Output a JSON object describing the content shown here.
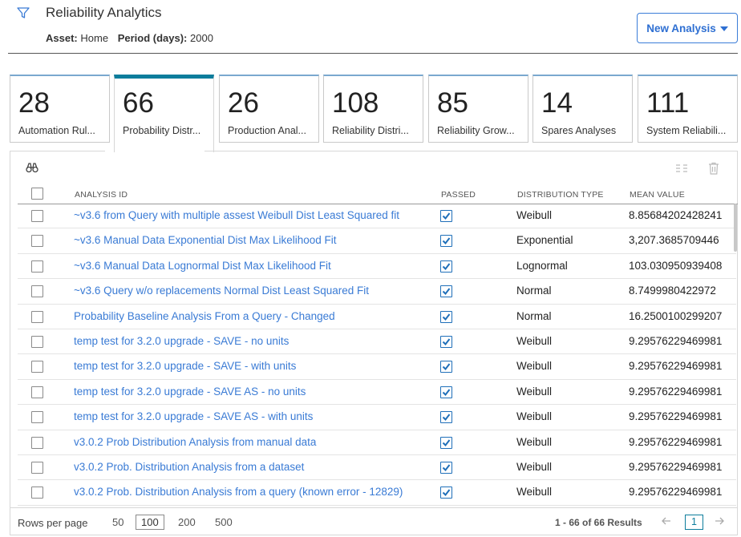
{
  "header": {
    "title": "Reliability Analytics",
    "asset_label": "Asset:",
    "asset_value": "Home",
    "period_label": "Period (days):",
    "period_value": "2000",
    "new_analysis_label": "New Analysis"
  },
  "tiles": [
    {
      "count": "28",
      "label": "Automation Rul...",
      "active": false
    },
    {
      "count": "66",
      "label": "Probability Distr...",
      "active": true
    },
    {
      "count": "26",
      "label": "Production Anal...",
      "active": false
    },
    {
      "count": "108",
      "label": "Reliability Distri...",
      "active": false
    },
    {
      "count": "85",
      "label": "Reliability Grow...",
      "active": false
    },
    {
      "count": "14",
      "label": "Spares Analyses",
      "active": false
    },
    {
      "count": "111",
      "label": "System Reliabili...",
      "active": false
    }
  ],
  "table": {
    "columns": {
      "analysis_id": "ANALYSIS ID",
      "passed": "PASSED",
      "distribution_type": "DISTRIBUTION TYPE",
      "mean_value": "MEAN VALUE"
    },
    "rows": [
      {
        "id": "~v3.6 from Query with multiple assest Weibull Dist Least Squared fit",
        "passed": true,
        "dist": "Weibull",
        "mean": "8.85684202428241"
      },
      {
        "id": "~v3.6 Manual Data Exponential Dist Max Likelihood Fit",
        "passed": true,
        "dist": "Exponential",
        "mean": "3,207.3685709446"
      },
      {
        "id": "~v3.6 Manual Data Lognormal Dist Max Likelihood Fit",
        "passed": true,
        "dist": "Lognormal",
        "mean": "103.030950939408"
      },
      {
        "id": "~v3.6 Query w/o replacements Normal Dist Least Squared Fit",
        "passed": true,
        "dist": "Normal",
        "mean": "8.7499980422972"
      },
      {
        "id": "Probability Baseline Analysis From a Query - Changed",
        "passed": true,
        "dist": "Normal",
        "mean": "16.2500100299207"
      },
      {
        "id": "temp test for 3.2.0 upgrade - SAVE - no units",
        "passed": true,
        "dist": "Weibull",
        "mean": "9.29576229469981"
      },
      {
        "id": "temp test for 3.2.0 upgrade - SAVE - with units",
        "passed": true,
        "dist": "Weibull",
        "mean": "9.29576229469981"
      },
      {
        "id": "temp test for 3.2.0 upgrade - SAVE AS - no units",
        "passed": true,
        "dist": "Weibull",
        "mean": "9.29576229469981"
      },
      {
        "id": "temp test for 3.2.0 upgrade - SAVE AS - with units",
        "passed": true,
        "dist": "Weibull",
        "mean": "9.29576229469981"
      },
      {
        "id": "v3.0.2 Prob Distribution Analysis from manual data",
        "passed": true,
        "dist": "Weibull",
        "mean": "9.29576229469981"
      },
      {
        "id": "v3.0.2 Prob. Distribution Analysis from a dataset",
        "passed": true,
        "dist": "Weibull",
        "mean": "9.29576229469981"
      },
      {
        "id": "v3.0.2 Prob. Distribution Analysis from a query (known error - 12829)",
        "passed": true,
        "dist": "Weibull",
        "mean": "9.29576229469981"
      }
    ]
  },
  "footer": {
    "rows_per_page_label": "Rows per page",
    "options": [
      "50",
      "100",
      "200",
      "500"
    ],
    "selected_option": "100",
    "results_text": "1 - 66 of 66 Results",
    "current_page": "1"
  },
  "icons": {
    "filter": "filter-icon",
    "binoculars": "binoculars-icon",
    "columns": "columns-icon",
    "trash": "trash-icon",
    "prev": "arrow-left-icon",
    "next": "arrow-right-icon"
  },
  "colors": {
    "link": "#3a7bd5",
    "accent": "#0d7d9c",
    "button": "#2e6fd2"
  }
}
